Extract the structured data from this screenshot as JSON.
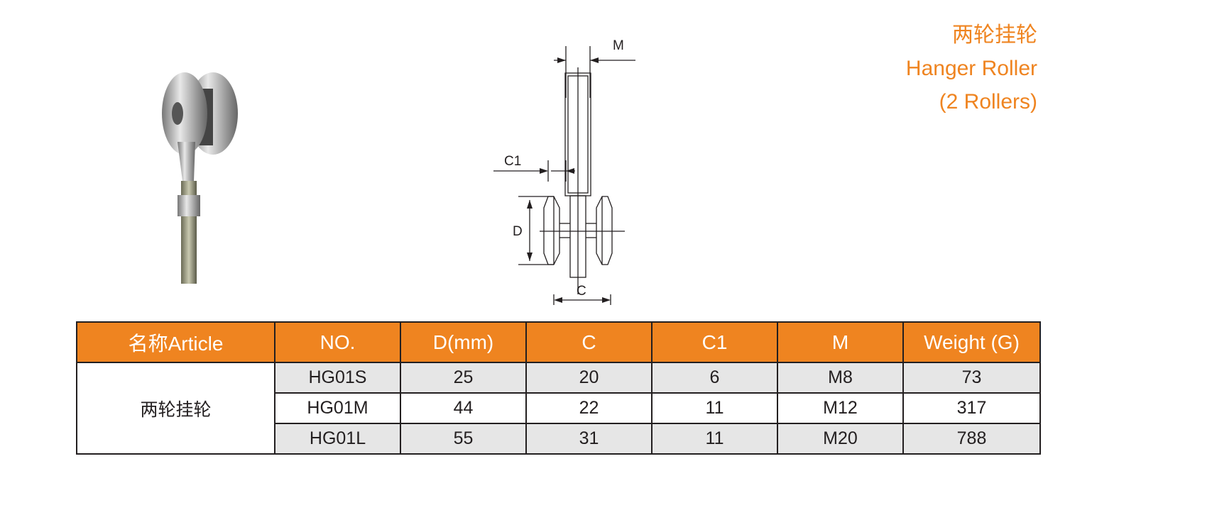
{
  "title": {
    "zh": "两轮挂轮",
    "en": "Hanger Roller",
    "sub": "(2 Rollers)"
  },
  "accent_color": "#ef8420",
  "drawing_labels": {
    "M": "M",
    "C1": "C1",
    "D": "D",
    "C": "C"
  },
  "table": {
    "headers": [
      "名称Article",
      "NO.",
      "D(mm)",
      "C",
      "C1",
      "M",
      "Weight (G)"
    ],
    "article": "两轮挂轮",
    "rows": [
      [
        "HG01S",
        "25",
        "20",
        "6",
        "M8",
        "73"
      ],
      [
        "HG01M",
        "44",
        "22",
        "11",
        "M12",
        "317"
      ],
      [
        "HG01L",
        "55",
        "31",
        "11",
        "M20",
        "788"
      ]
    ]
  }
}
